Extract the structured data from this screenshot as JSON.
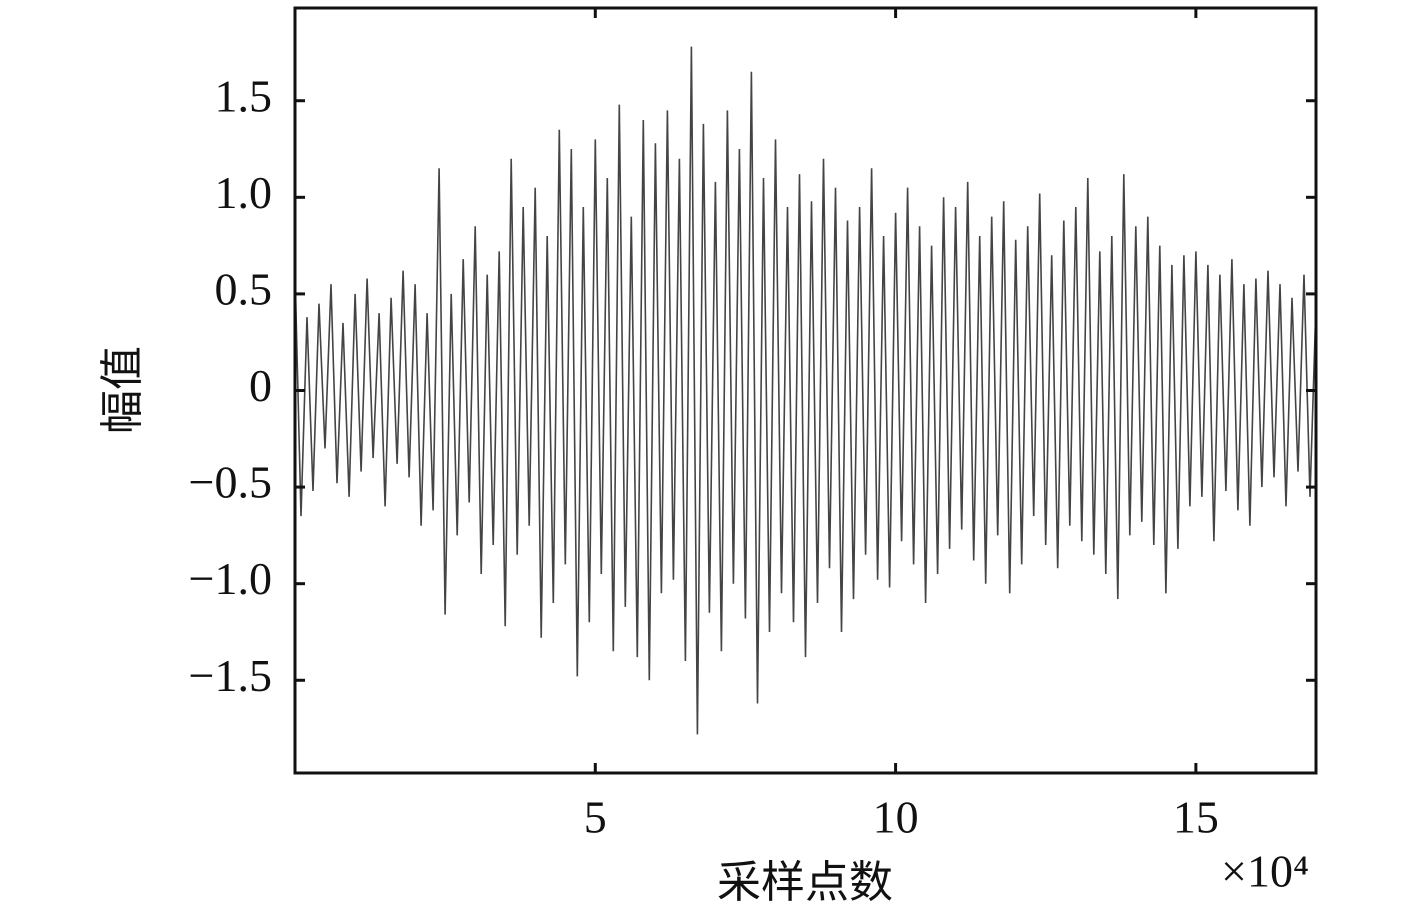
{
  "chart_data": {
    "type": "line",
    "xlabel": "采样点数",
    "ylabel": "幅值",
    "x_multiplier": "×10⁴",
    "color": "#444444",
    "xlim": [
      0,
      17
    ],
    "ylim": [
      -1.98,
      1.98
    ],
    "xticks": [
      5,
      10,
      15
    ],
    "yticks": [
      {
        "value": 1.5,
        "label": "1.5"
      },
      {
        "value": 1.0,
        "label": "1.0"
      },
      {
        "value": 0.5,
        "label": "0.5"
      },
      0,
      {
        "value": -0.5,
        "label": "−0.5"
      },
      {
        "value": -1.0,
        "label": "−1.0"
      },
      {
        "value": -1.5,
        "label": "−1.5"
      }
    ],
    "x": [
      0,
      0.1,
      0.2,
      0.3,
      0.4,
      0.5,
      0.6,
      0.7,
      0.8,
      0.9,
      1,
      1.1,
      1.2,
      1.3,
      1.4,
      1.5,
      1.6,
      1.7,
      1.8,
      1.9,
      2,
      2.1,
      2.2,
      2.3,
      2.4,
      2.5,
      2.6,
      2.7,
      2.8,
      2.9,
      3,
      3.1,
      3.2,
      3.3,
      3.4,
      3.5,
      3.6,
      3.7,
      3.8,
      3.9,
      4,
      4.1,
      4.2,
      4.3,
      4.4,
      4.5,
      4.6,
      4.7,
      4.8,
      4.9,
      5,
      5.1,
      5.2,
      5.3,
      5.4,
      5.5,
      5.6,
      5.7,
      5.8,
      5.9,
      6,
      6.1,
      6.2,
      6.3,
      6.4,
      6.5,
      6.6,
      6.7,
      6.8,
      6.9,
      7,
      7.1,
      7.2,
      7.3,
      7.4,
      7.5,
      7.6,
      7.7,
      7.8,
      7.9,
      8,
      8.1,
      8.2,
      8.3,
      8.4,
      8.5,
      8.6,
      8.7,
      8.8,
      8.9,
      9,
      9.1,
      9.2,
      9.3,
      9.4,
      9.5,
      9.6,
      9.7,
      9.8,
      9.9,
      10,
      10.1,
      10.2,
      10.3,
      10.4,
      10.5,
      10.6,
      10.7,
      10.8,
      10.9,
      11,
      11.1,
      11.2,
      11.3,
      11.4,
      11.5,
      11.6,
      11.7,
      11.8,
      11.9,
      12,
      12.1,
      12.2,
      12.3,
      12.4,
      12.5,
      12.6,
      12.7,
      12.8,
      12.9,
      13,
      13.1,
      13.2,
      13.3,
      13.4,
      13.5,
      13.6,
      13.7,
      13.8,
      13.9,
      14,
      14.1,
      14.2,
      14.3,
      14.4,
      14.5,
      14.6,
      14.7,
      14.8,
      14.9,
      15,
      15.1,
      15.2,
      15.3,
      15.4,
      15.5,
      15.6,
      15.7,
      15.8,
      15.9,
      16,
      16.1,
      16.2,
      16.3,
      16.4,
      16.5,
      16.6,
      16.7,
      16.8,
      16.9,
      17
    ],
    "values": [
      0.62,
      -0.65,
      0.38,
      -0.52,
      0.45,
      -0.3,
      0.55,
      -0.48,
      0.35,
      -0.55,
      0.5,
      -0.42,
      0.58,
      -0.35,
      0.4,
      -0.6,
      0.48,
      -0.38,
      0.62,
      -0.45,
      0.55,
      -0.7,
      0.4,
      -0.62,
      1.15,
      -1.16,
      0.5,
      -0.75,
      0.68,
      -0.58,
      0.85,
      -0.95,
      0.6,
      -0.8,
      0.72,
      -1.22,
      1.2,
      -0.85,
      0.95,
      -0.7,
      1.05,
      -1.28,
      0.8,
      -1.1,
      1.35,
      -0.9,
      1.25,
      -1.48,
      0.95,
      -1.2,
      1.3,
      -0.95,
      1.1,
      -1.35,
      1.48,
      -1.12,
      0.9,
      -1.38,
      1.4,
      -1.5,
      1.28,
      -1.05,
      1.45,
      -0.98,
      1.2,
      -1.4,
      1.78,
      -1.78,
      1.38,
      -1.15,
      1.08,
      -1.35,
      1.45,
      -1.0,
      1.25,
      -1.18,
      1.65,
      -1.62,
      1.1,
      -1.25,
      1.3,
      -1.05,
      0.95,
      -1.2,
      1.12,
      -1.38,
      0.98,
      -1.1,
      1.2,
      -0.92,
      1.05,
      -1.25,
      0.88,
      -1.08,
      0.95,
      -0.85,
      1.15,
      -0.98,
      0.8,
      -1.02,
      0.92,
      -0.78,
      1.05,
      -0.9,
      0.85,
      -1.1,
      0.75,
      -0.95,
      1.0,
      -0.82,
      0.95,
      -0.72,
      1.08,
      -0.88,
      0.8,
      -1.0,
      0.9,
      -0.75,
      0.98,
      -1.05,
      0.78,
      -0.9,
      0.85,
      -0.65,
      1.02,
      -0.8,
      0.7,
      -0.92,
      0.88,
      -0.7,
      0.95,
      -0.78,
      1.1,
      -0.85,
      0.72,
      -0.95,
      0.8,
      -1.08,
      1.12,
      -0.75,
      0.85,
      -0.68,
      0.9,
      -0.8,
      0.75,
      -1.05,
      0.65,
      -0.82,
      0.7,
      -0.6,
      0.72,
      -0.55,
      0.65,
      -0.78,
      0.6,
      -0.52,
      0.68,
      -0.62,
      0.55,
      -0.7,
      0.58,
      -0.5,
      0.62,
      -0.45,
      0.55,
      -0.6,
      0.48,
      -0.42,
      0.6,
      -0.55,
      0.45
    ]
  }
}
